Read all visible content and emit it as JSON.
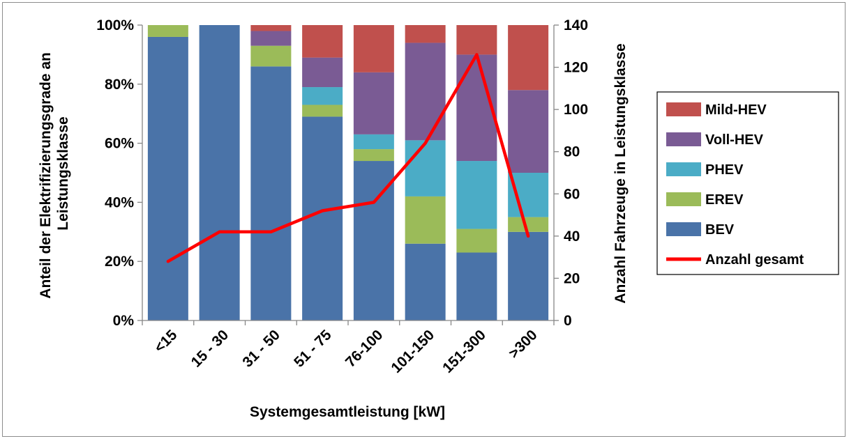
{
  "chart_data": {
    "type": "bar",
    "stacked": true,
    "categories": [
      "<15",
      "15 - 30",
      "31 - 50",
      "51 - 75",
      "76-100",
      "101-150",
      "151-300",
      ">300"
    ],
    "series": [
      {
        "name": "BEV",
        "color": "#4a73a8",
        "values": [
          96,
          100,
          86,
          69,
          54,
          26,
          23,
          30
        ]
      },
      {
        "name": "EREV",
        "color": "#9bbb59",
        "values": [
          4,
          0,
          7,
          4,
          4,
          16,
          8,
          5
        ]
      },
      {
        "name": "PHEV",
        "color": "#4bacc6",
        "values": [
          0,
          0,
          0,
          6,
          5,
          19,
          23,
          15
        ]
      },
      {
        "name": "Voll-HEV",
        "color": "#7a5b94",
        "values": [
          0,
          0,
          5,
          10,
          21,
          33,
          36,
          28
        ]
      },
      {
        "name": "Mild-HEV",
        "color": "#c0504d",
        "values": [
          0,
          0,
          2,
          11,
          16,
          6,
          10,
          22
        ]
      }
    ],
    "line_series": {
      "name": "Anzahl gesamt",
      "color": "#ff0000",
      "axis": "right",
      "values": [
        28,
        42,
        42,
        52,
        56,
        84,
        126,
        40
      ]
    },
    "xlabel": "Systemgesamtleistung [kW]",
    "ylabel": "Anteil der Elektrifizierungsgrade an Leistungsklasse",
    "ylabel_lines": [
      "Anteil der Elektrifizierungsgrade an",
      "Leistungsklasse"
    ],
    "ylabel_right": "Anzahl Fahrzeuge in Leistungsklasse",
    "ylim": [
      0,
      100
    ],
    "ylim_right": [
      0,
      140
    ],
    "yticks": [
      "0%",
      "20%",
      "40%",
      "60%",
      "80%",
      "100%"
    ],
    "yticks_right": [
      "0",
      "20",
      "40",
      "60",
      "80",
      "100",
      "120",
      "140"
    ],
    "legend_order": [
      "Mild-HEV",
      "Voll-HEV",
      "PHEV",
      "EREV",
      "BEV",
      "Anzahl gesamt"
    ],
    "legend_position": "right",
    "grid": false
  }
}
